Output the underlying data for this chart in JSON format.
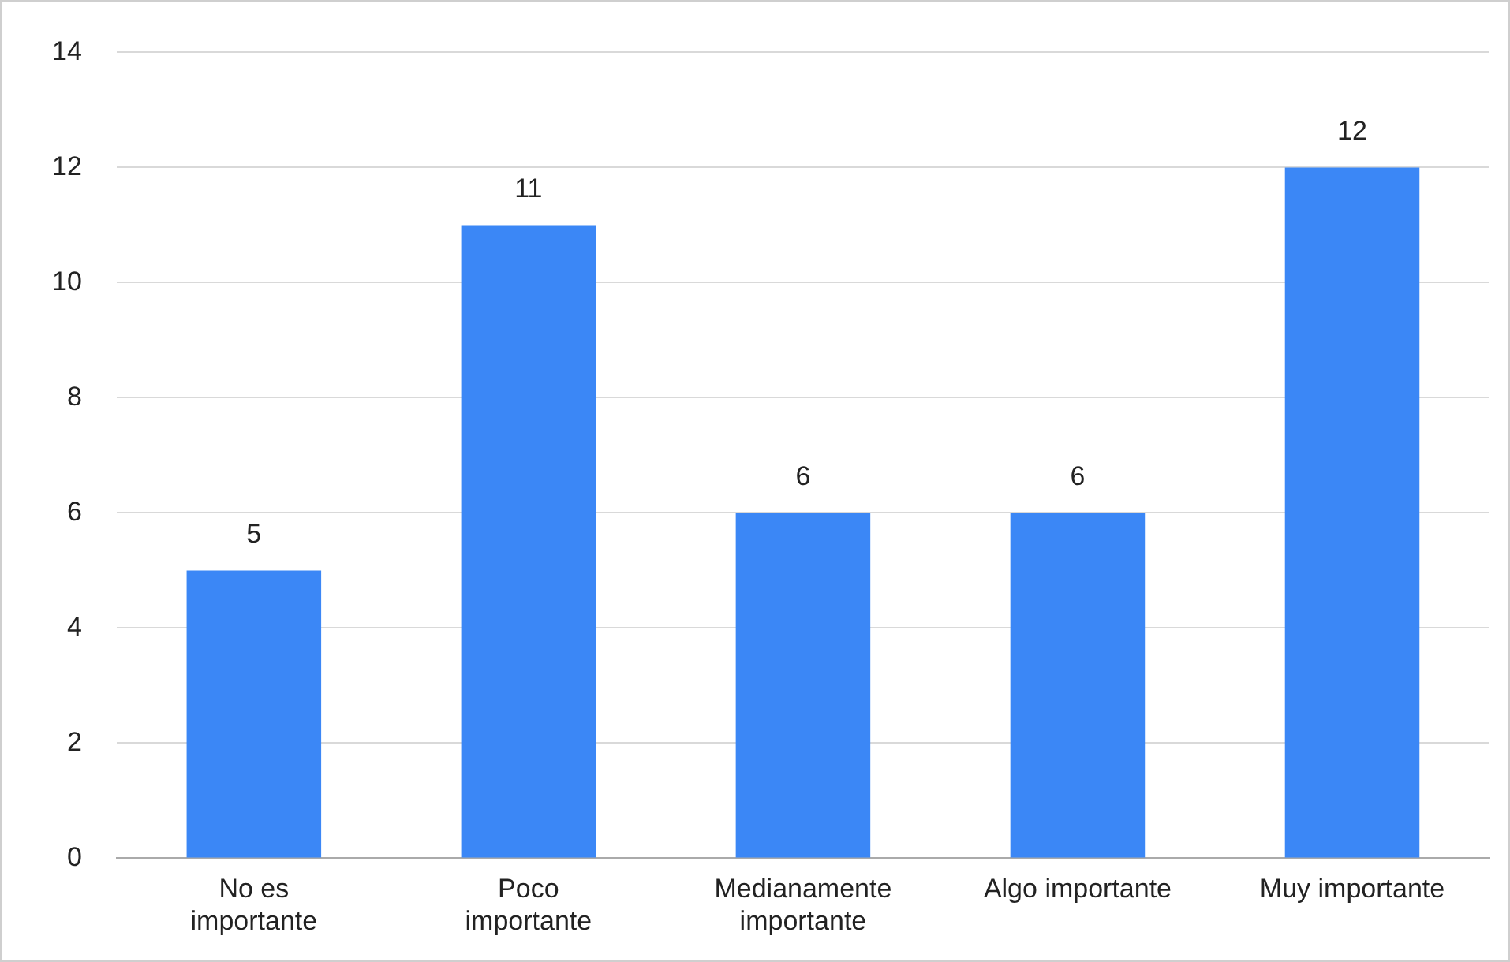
{
  "chart_data": {
    "type": "bar",
    "categories": [
      "No es\nimportante",
      "Poco\nimportante",
      "Medianamente\nimportante",
      "Algo importante",
      "Muy importante"
    ],
    "values": [
      5,
      11,
      6,
      6,
      12
    ],
    "color": "#3b87f6",
    "ylim": [
      0,
      14
    ],
    "yticks": [
      0,
      2,
      4,
      6,
      8,
      10,
      12,
      14
    ],
    "grid": "y",
    "data_labels": true,
    "legend": false
  }
}
